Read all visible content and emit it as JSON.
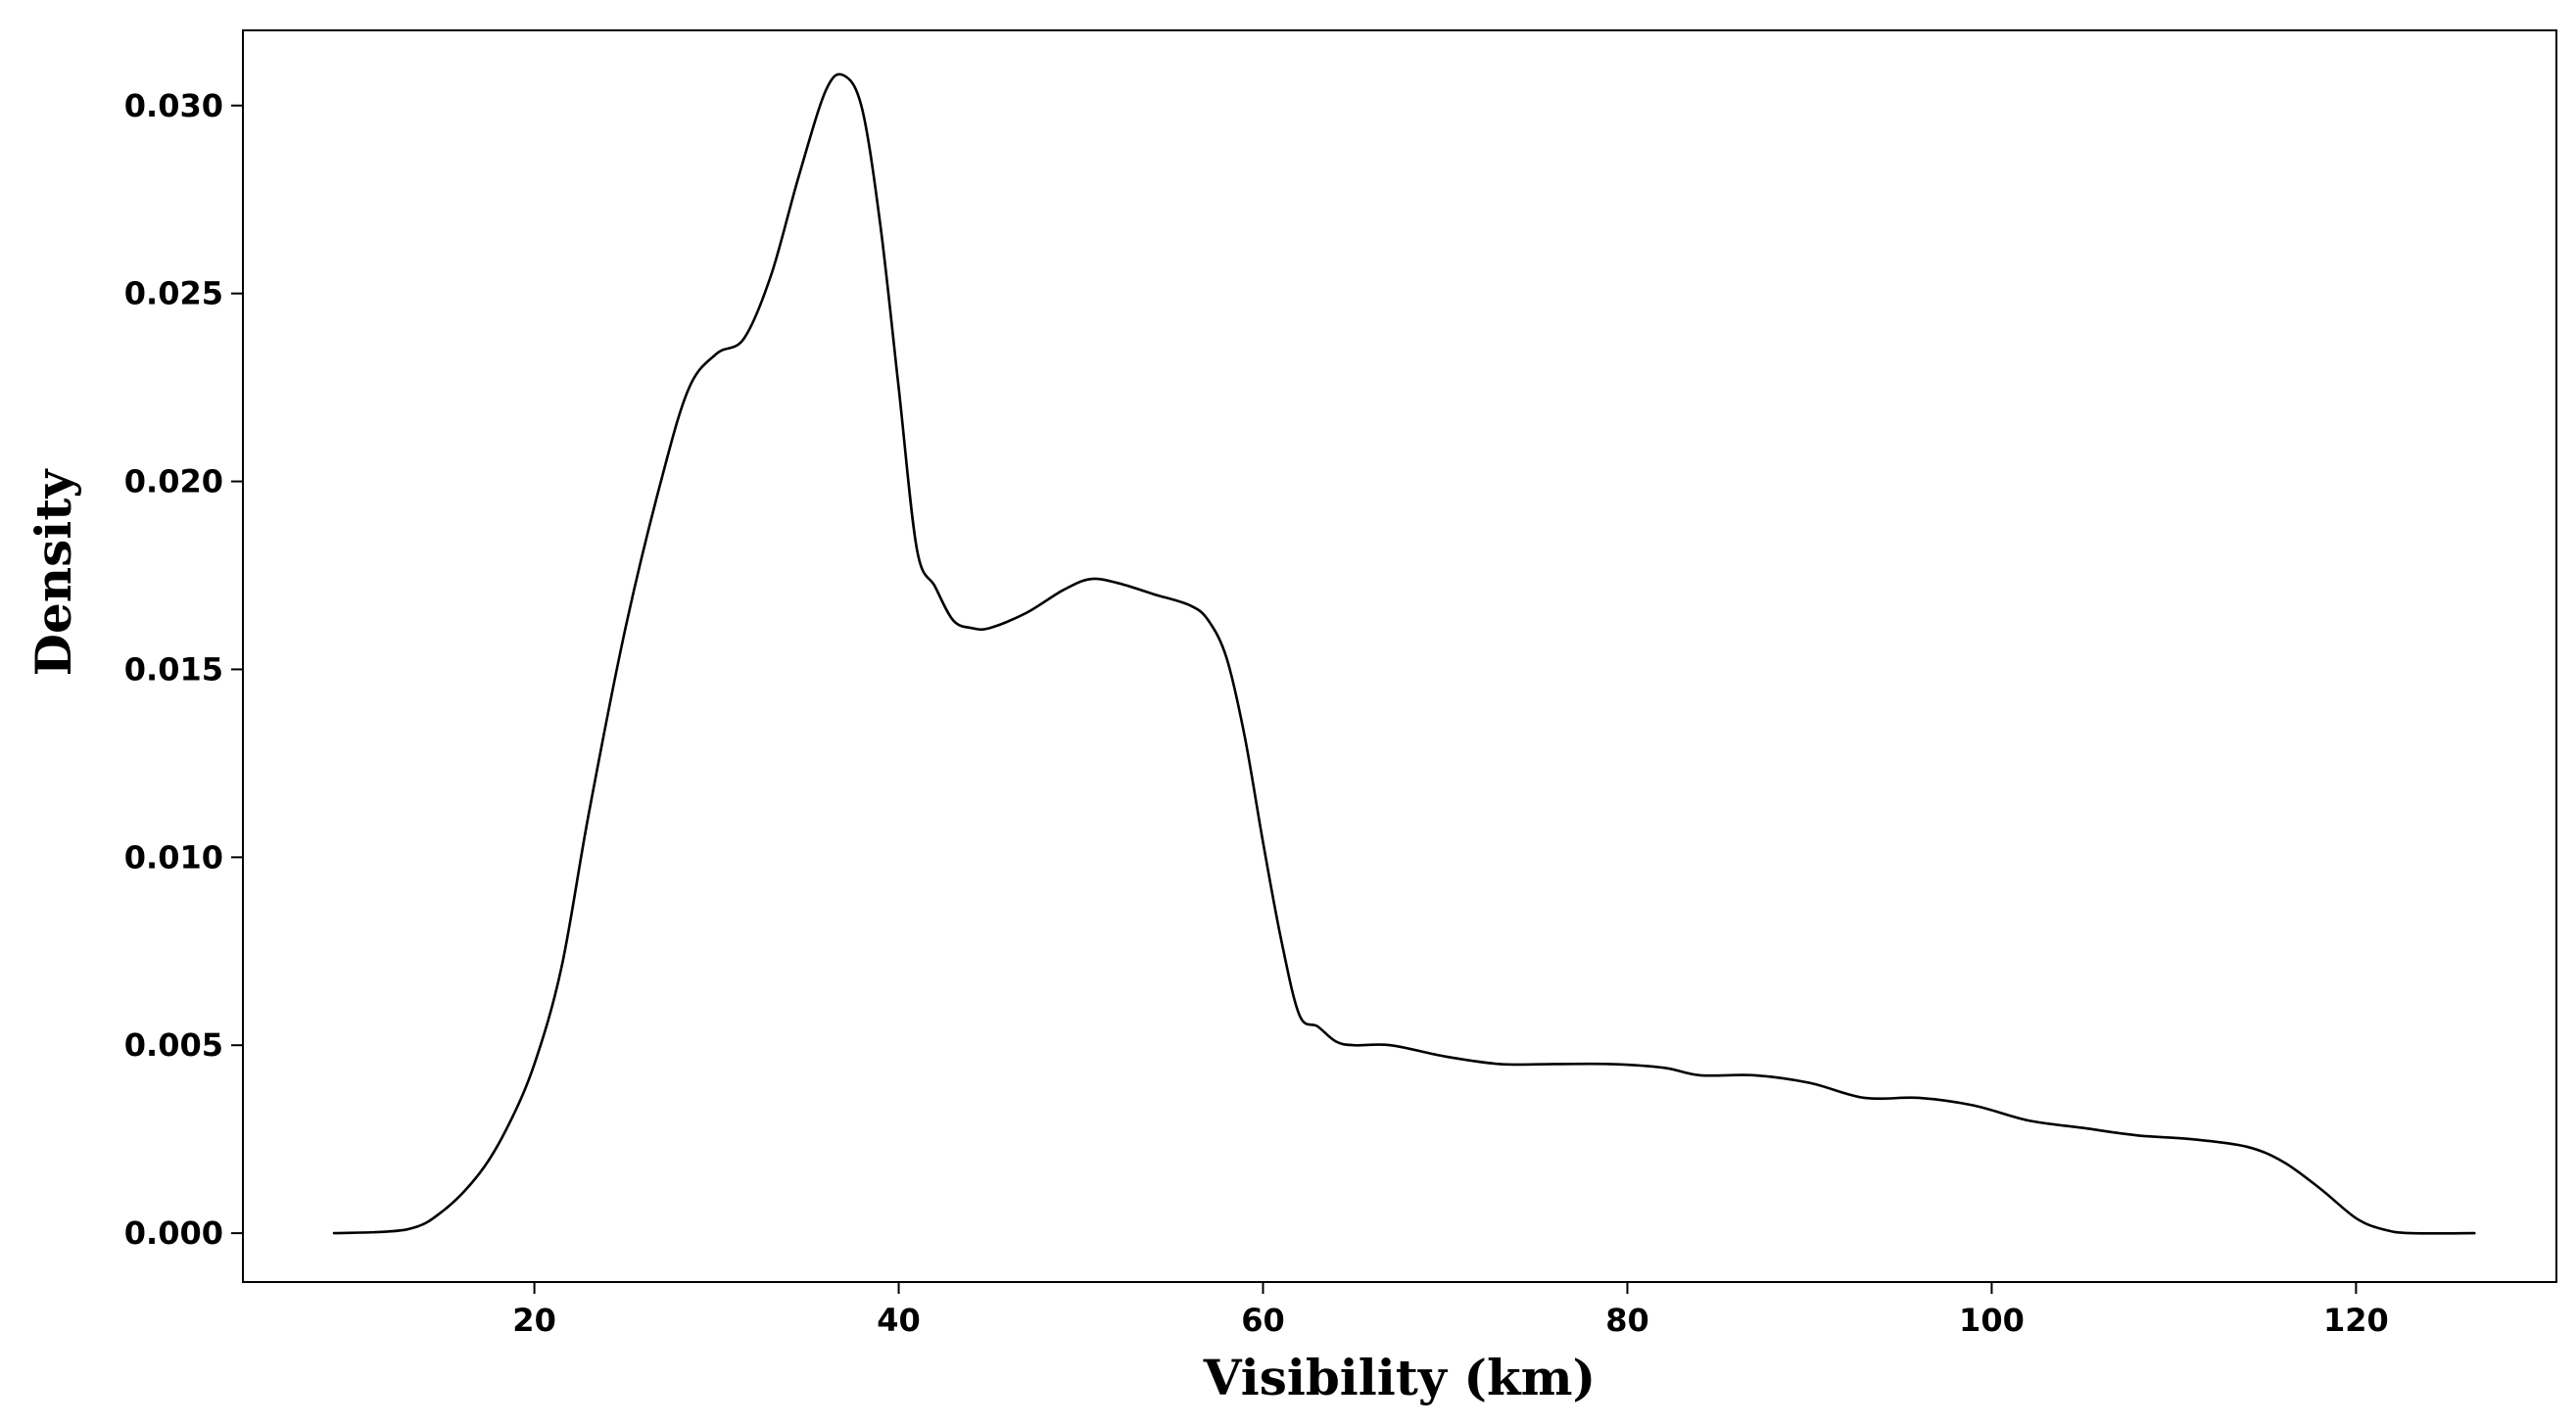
{
  "chart_data": {
    "type": "line",
    "title": "",
    "xlabel": "Visibility (km)",
    "ylabel": "Density",
    "xlim": [
      4,
      131
    ],
    "ylim": [
      -0.0013,
      0.032
    ],
    "xticks": [
      {
        "value": 20,
        "label": "20"
      },
      {
        "value": 40,
        "label": "40"
      },
      {
        "value": 60,
        "label": "60"
      },
      {
        "value": 80,
        "label": "80"
      },
      {
        "value": 100,
        "label": "100"
      },
      {
        "value": 120,
        "label": "120"
      }
    ],
    "yticks": [
      {
        "value": 0.0,
        "label": "0.000"
      },
      {
        "value": 0.005,
        "label": "0.005"
      },
      {
        "value": 0.01,
        "label": "0.010"
      },
      {
        "value": 0.015,
        "label": "0.015"
      },
      {
        "value": 0.02,
        "label": "0.020"
      },
      {
        "value": 0.025,
        "label": "0.025"
      },
      {
        "value": 0.03,
        "label": "0.030"
      }
    ],
    "grid": false,
    "legend": "none",
    "series": [
      {
        "color": "#000000",
        "x": [
          9,
          13,
          15,
          17,
          18.5,
          20,
          21.5,
          23,
          25,
          27,
          28.5,
          30,
          31.5,
          33,
          34.5,
          36,
          37,
          38,
          39,
          40,
          41,
          42,
          43,
          44,
          45,
          47,
          49,
          50.5,
          52,
          54,
          56,
          57,
          58,
          59,
          60,
          61,
          62,
          63,
          64,
          65,
          67,
          70,
          73,
          76,
          79,
          82,
          84,
          87,
          90,
          93,
          96,
          99,
          102,
          105,
          108,
          111,
          114,
          116,
          118,
          120,
          121.5,
          123,
          126.5
        ],
        "y": [
          0.0,
          0.0001,
          0.0006,
          0.0016,
          0.0028,
          0.0045,
          0.0071,
          0.0112,
          0.0161,
          0.0201,
          0.0225,
          0.0234,
          0.0238,
          0.0255,
          0.0281,
          0.0304,
          0.0308,
          0.0299,
          0.0268,
          0.0225,
          0.0182,
          0.0172,
          0.0163,
          0.0161,
          0.0161,
          0.0165,
          0.0171,
          0.0174,
          0.0173,
          0.017,
          0.0167,
          0.0163,
          0.0153,
          0.0132,
          0.0104,
          0.0078,
          0.0058,
          0.0055,
          0.0051,
          0.005,
          0.005,
          0.0047,
          0.0045,
          0.0045,
          0.0045,
          0.0044,
          0.0042,
          0.0042,
          0.004,
          0.0036,
          0.0036,
          0.0034,
          0.003,
          0.0028,
          0.0026,
          0.0025,
          0.0023,
          0.0019,
          0.0012,
          0.0004,
          0.0001,
          0.0,
          0.0
        ]
      }
    ]
  }
}
